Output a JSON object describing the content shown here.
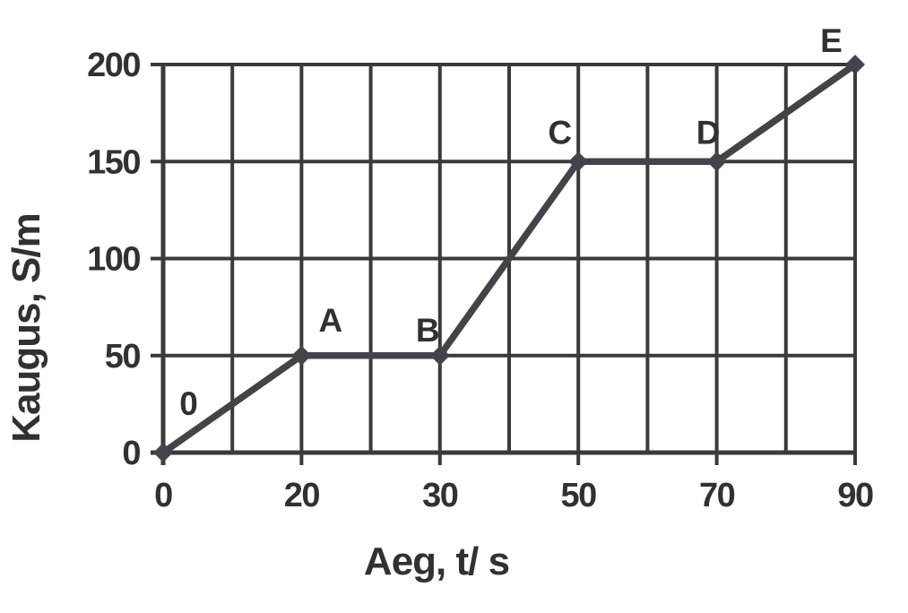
{
  "chart_data": {
    "type": "line",
    "title": "",
    "xlabel": "Aeg, t/ s",
    "ylabel": "Kaugus, S/m",
    "x_tick_values": [
      0,
      20,
      30,
      50,
      70,
      90
    ],
    "x_tick_labels": [
      "0",
      "20",
      "30",
      "50",
      "70",
      "90"
    ],
    "y_tick_values": [
      0,
      50,
      100,
      150,
      200
    ],
    "y_tick_labels": [
      "0",
      "50",
      "100",
      "150",
      "200"
    ],
    "ylim": [
      0,
      200
    ],
    "x_axis_style": "labeled ticks evenly spaced (category-like); minor vertical gridline halfway between each labeled tick",
    "grid": {
      "horizontal": true,
      "vertical": true,
      "minor_vertical_midpoints": true
    },
    "legend": false,
    "marker": "diamond",
    "series": [
      {
        "name": "S(t)",
        "points": [
          {
            "x": 0,
            "y": 0,
            "label": "0",
            "label_dx": 28,
            "label_dy": -55
          },
          {
            "x": 20,
            "y": 50,
            "label": "A",
            "label_dx": 32,
            "label_dy": -40
          },
          {
            "x": 30,
            "y": 50,
            "label": "B",
            "label_dx": -14,
            "label_dy": -29
          },
          {
            "x": 50,
            "y": 150,
            "label": "C",
            "label_dx": -21,
            "label_dy": -33
          },
          {
            "x": 70,
            "y": 150,
            "label": "D",
            "label_dx": -10,
            "label_dy": -33
          },
          {
            "x": 90,
            "y": 200,
            "label": "E",
            "label_dx": -27,
            "label_dy": -27
          }
        ]
      }
    ],
    "colors": {
      "background": "#ffffff",
      "grid": "#3a3a3c",
      "data_line": "#424449",
      "text": "#313133"
    }
  }
}
